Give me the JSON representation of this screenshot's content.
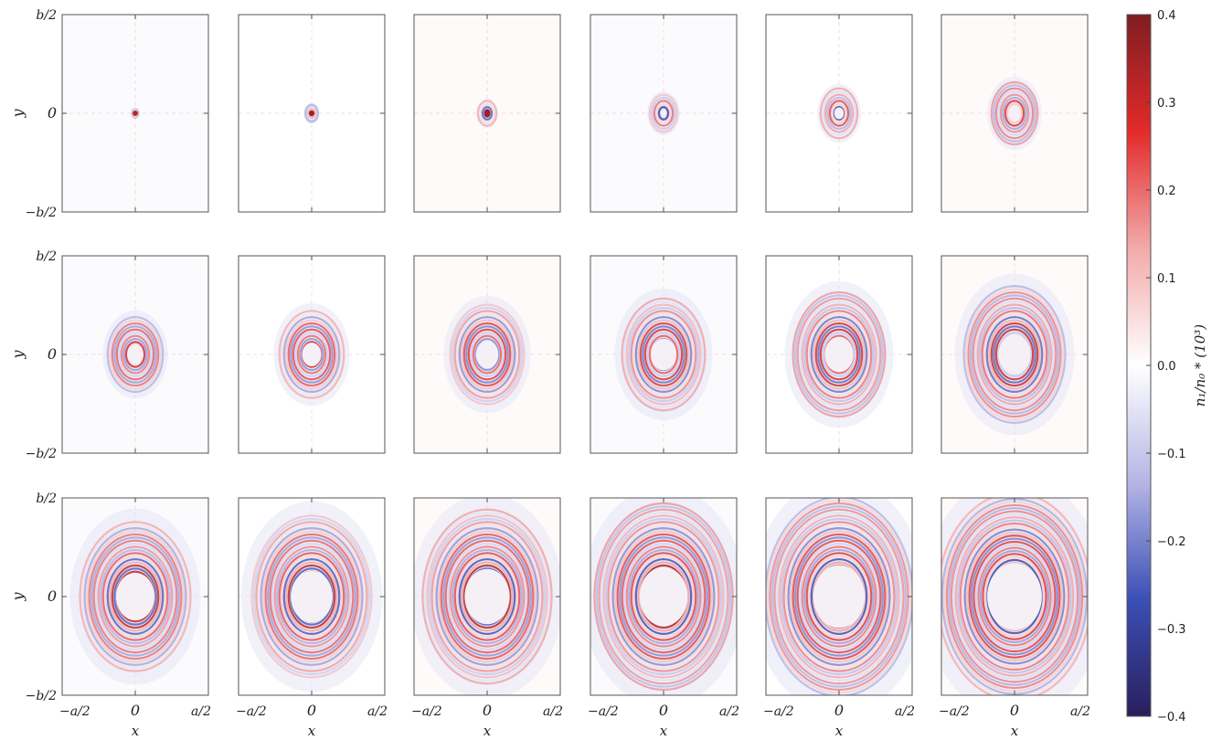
{
  "chart_data": {
    "type": "heatmap",
    "grid": {
      "rows": 3,
      "cols": 6
    },
    "panel_count": 18,
    "xlabel": "x",
    "ylabel": "y",
    "x_ticks": [
      "−a/2",
      "0",
      "a/2"
    ],
    "y_ticks": [
      "b/2",
      "0",
      "−b/2"
    ],
    "colorbar": {
      "label": "n₁/n₀ * (10³)",
      "min": -0.4,
      "max": 0.4,
      "ticks": [
        0.4,
        0.3,
        0.2,
        0.1,
        0.0,
        -0.1,
        -0.2,
        -0.3,
        -0.4
      ],
      "tick_labels": [
        "0.4",
        "0.3",
        "0.2",
        "0.1",
        "0.0",
        "−0.1",
        "−0.2",
        "−0.3",
        "−0.4"
      ],
      "colormap": "seismic (dark blue → white → dark red)",
      "colors": [
        "#2a1f5e",
        "#3b4fb5",
        "#b5b5e5",
        "#ffffff",
        "#f2aaaa",
        "#e32a2a",
        "#7f1d22"
      ]
    },
    "panels": [
      {
        "index": 1,
        "rings": 1,
        "spread": 0.04,
        "core": 0.0,
        "amplitude": 0.35
      },
      {
        "index": 2,
        "rings": 1,
        "spread": 0.08,
        "core": 0.0,
        "amplitude": 0.4
      },
      {
        "index": 3,
        "rings": 2,
        "spread": 0.12,
        "core": 0.0,
        "amplitude": 0.4
      },
      {
        "index": 4,
        "rings": 3,
        "spread": 0.18,
        "core": 0.02,
        "amplitude": 0.4
      },
      {
        "index": 5,
        "rings": 4,
        "spread": 0.24,
        "core": 0.03,
        "amplitude": 0.4
      },
      {
        "index": 6,
        "rings": 5,
        "spread": 0.3,
        "core": 0.04,
        "amplitude": 0.4
      },
      {
        "index": 7,
        "rings": 6,
        "spread": 0.36,
        "core": 0.05,
        "amplitude": 0.4
      },
      {
        "index": 8,
        "rings": 7,
        "spread": 0.42,
        "core": 0.06,
        "amplitude": 0.4
      },
      {
        "index": 9,
        "rings": 8,
        "spread": 0.48,
        "core": 0.07,
        "amplitude": 0.4
      },
      {
        "index": 10,
        "rings": 9,
        "spread": 0.54,
        "core": 0.08,
        "amplitude": 0.4
      },
      {
        "index": 11,
        "rings": 10,
        "spread": 0.6,
        "core": 0.09,
        "amplitude": 0.4
      },
      {
        "index": 12,
        "rings": 11,
        "spread": 0.66,
        "core": 0.1,
        "amplitude": 0.4
      },
      {
        "index": 13,
        "rings": 12,
        "spread": 0.72,
        "core": 0.12,
        "amplitude": 0.4
      },
      {
        "index": 14,
        "rings": 13,
        "spread": 0.78,
        "core": 0.13,
        "amplitude": 0.4
      },
      {
        "index": 15,
        "rings": 14,
        "spread": 0.84,
        "core": 0.14,
        "amplitude": 0.4
      },
      {
        "index": 16,
        "rings": 15,
        "spread": 0.9,
        "core": 0.15,
        "amplitude": 0.4
      },
      {
        "index": 17,
        "rings": 16,
        "spread": 0.96,
        "core": 0.16,
        "amplitude": 0.4
      },
      {
        "index": 18,
        "rings": 17,
        "spread": 1.0,
        "core": 0.17,
        "amplitude": 0.4
      }
    ]
  }
}
